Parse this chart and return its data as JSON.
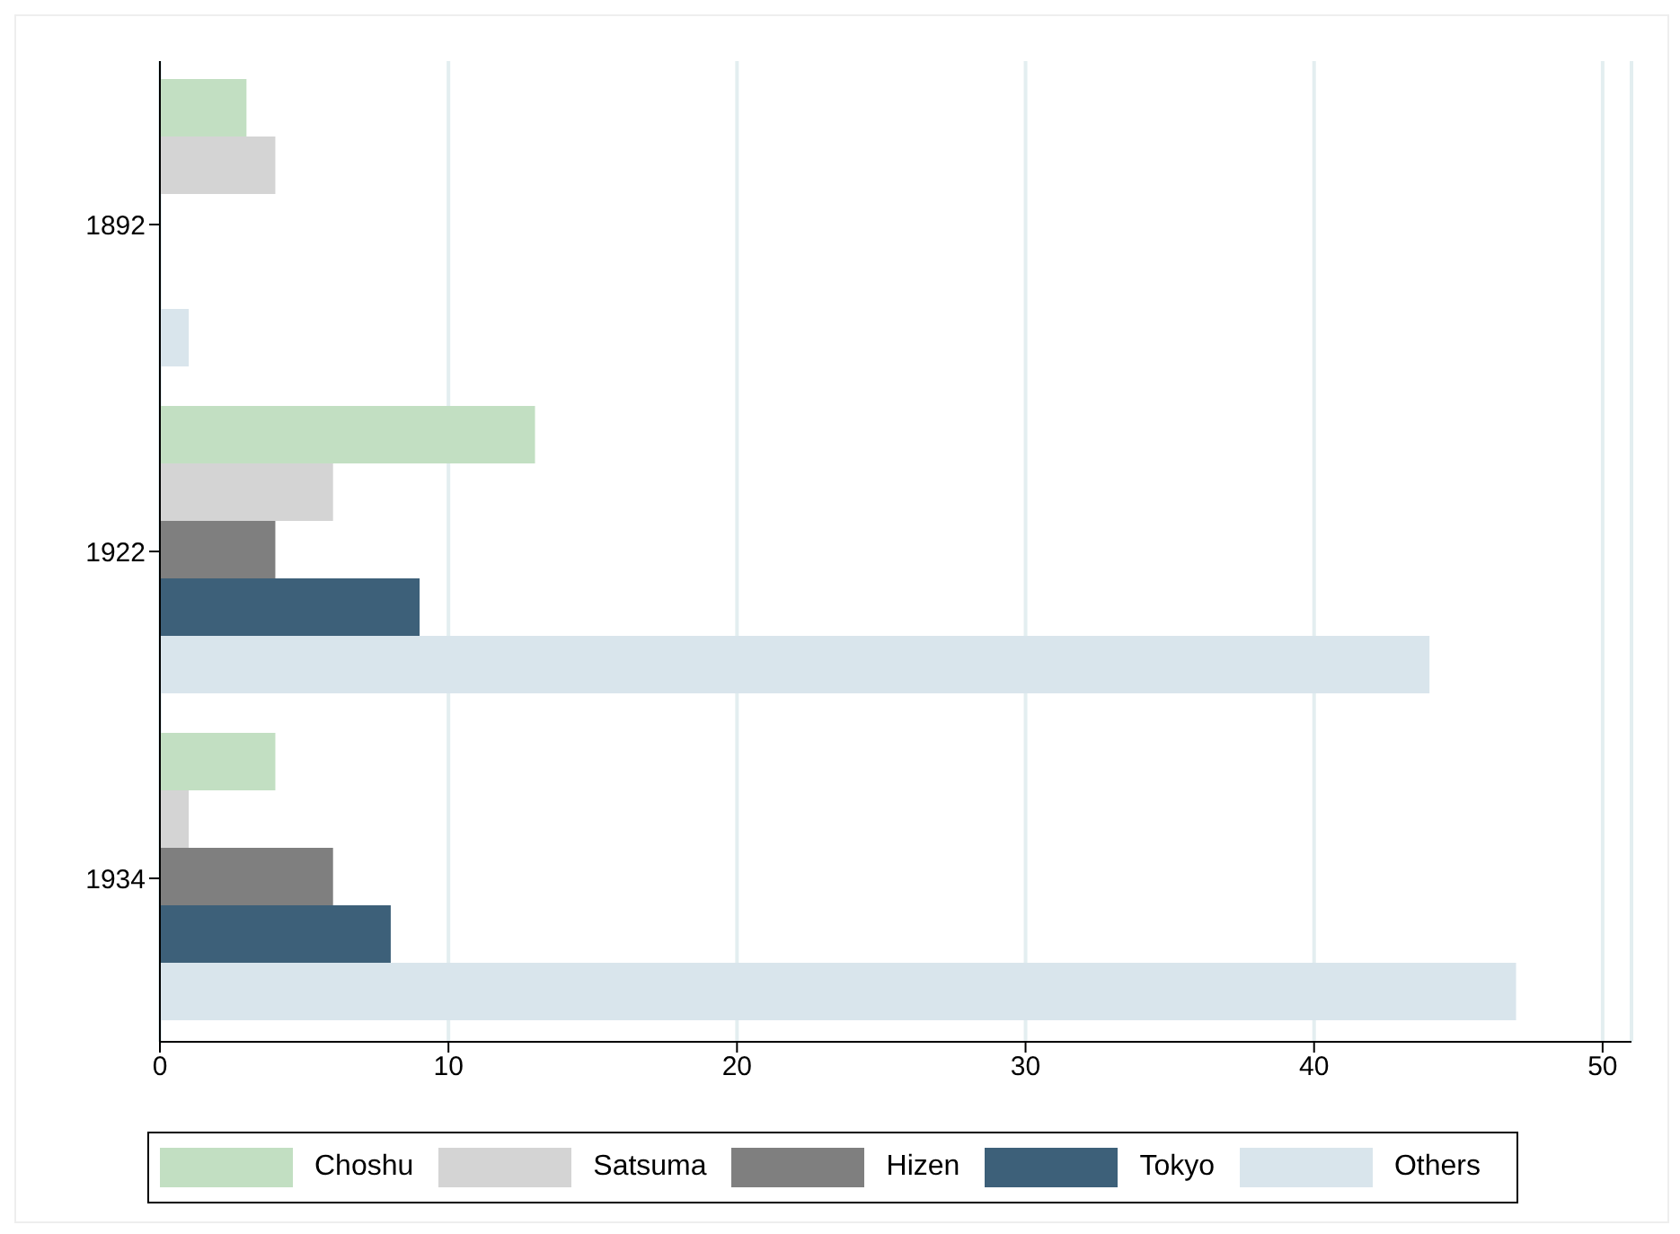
{
  "chart_data": {
    "type": "bar",
    "orientation": "horizontal",
    "categories": [
      "1892",
      "1922",
      "1934"
    ],
    "series": [
      {
        "name": "Choshu",
        "color": "#c2dfc2",
        "values": [
          3,
          13,
          4
        ]
      },
      {
        "name": "Satsuma",
        "color": "#d4d4d4",
        "values": [
          4,
          6,
          1
        ]
      },
      {
        "name": "Hizen",
        "color": "#7f7f7f",
        "values": [
          0,
          4,
          6
        ]
      },
      {
        "name": "Tokyo",
        "color": "#3d6079",
        "values": [
          0,
          9,
          8
        ]
      },
      {
        "name": "Others",
        "color": "#d9e5ec",
        "values": [
          1,
          44,
          47
        ]
      }
    ],
    "xlim": [
      0,
      51
    ],
    "xticks": [
      0,
      10,
      20,
      30,
      40,
      50
    ],
    "grid": "x",
    "legend": "bottom"
  }
}
